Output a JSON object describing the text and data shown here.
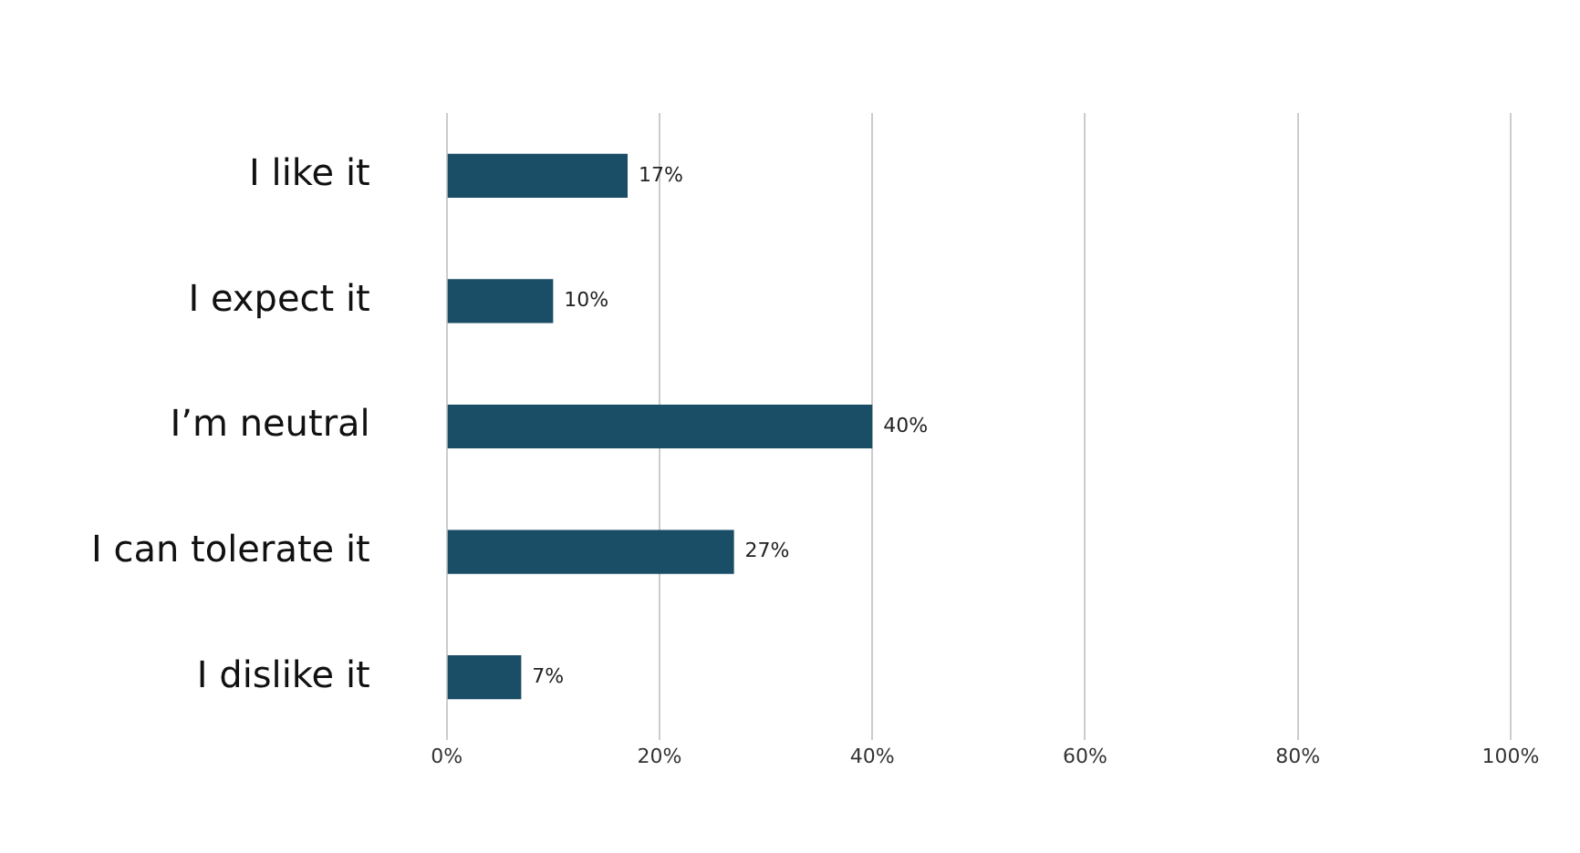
{
  "chart_data": {
    "type": "bar",
    "orientation": "horizontal",
    "categories": [
      "I like it",
      "I expect it",
      "I’m neutral",
      "I can tolerate it",
      "I dislike it"
    ],
    "values": [
      17,
      10,
      40,
      27,
      7
    ],
    "value_labels": [
      "17%",
      "10%",
      "40%",
      "27%",
      "7%"
    ],
    "color": "#1a4d66",
    "xlim": [
      0,
      100
    ],
    "xticks": [
      {
        "value": 0,
        "label": "0%"
      },
      {
        "value": 20,
        "label": "20%"
      },
      {
        "value": 40,
        "label": "40%"
      },
      {
        "value": 60,
        "label": "60%"
      },
      {
        "value": 80,
        "label": "80%"
      },
      {
        "value": 100,
        "label": "100%"
      }
    ],
    "grid": "x",
    "legend": false
  }
}
